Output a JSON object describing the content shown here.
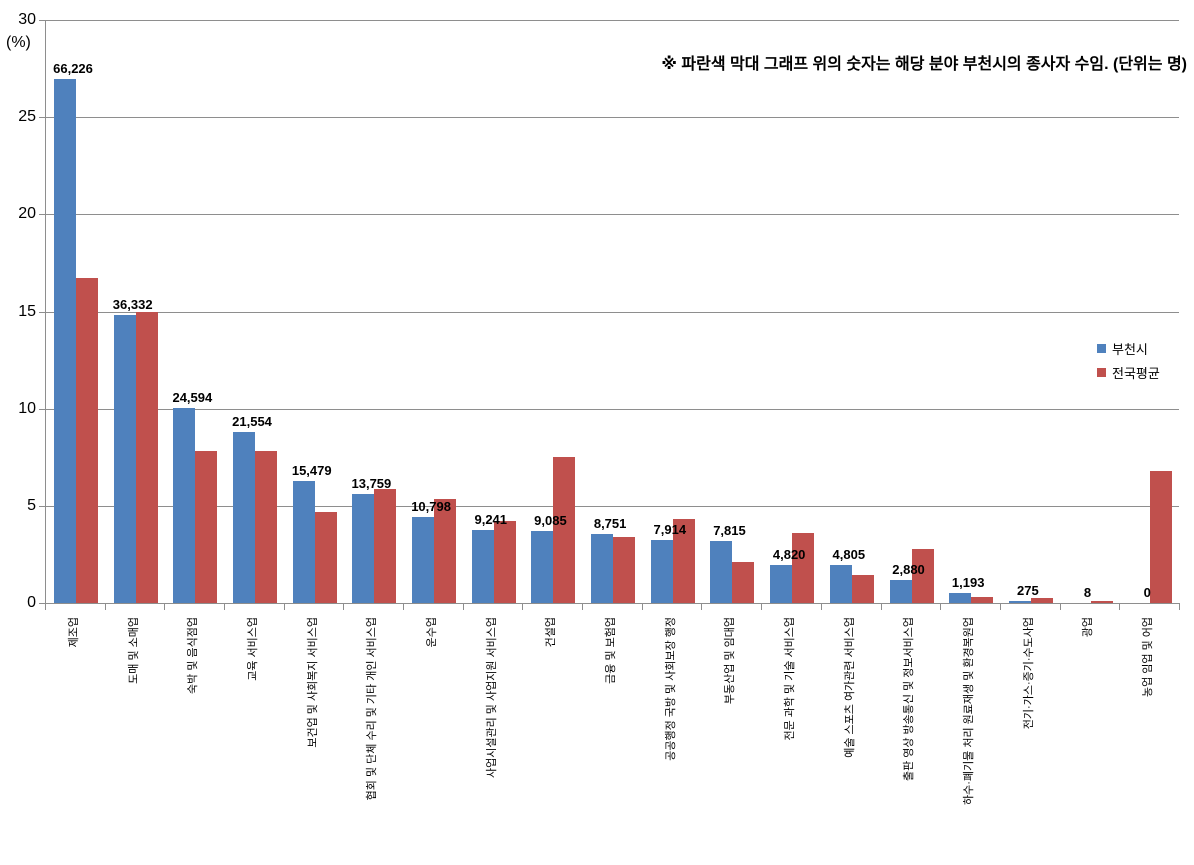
{
  "chart_data": {
    "type": "bar",
    "title": "",
    "note": "※ 파란색 막대 그래프 위의 숫자는 해당 분야 부천시의 종사자 수임. (단위는 명)",
    "ylabel": "(%)",
    "ylim": [
      0,
      30
    ],
    "yticks": [
      0,
      5,
      10,
      15,
      20,
      25,
      30
    ],
    "grid": true,
    "legend_position": "middle-right",
    "categories": [
      "제조업",
      "도매 및 소매업",
      "숙박 및 음식점업",
      "교육 서비스업",
      "보건업 및 사회복지 서비스업",
      "협회 및 단체 수리 및 기타 개인 서비스업",
      "운수업",
      "사업시설관리 및 사업지원 서비스업",
      "건설업",
      "금융 및 보험업",
      "공공행정 국방 및 사회보장 행정",
      "부동산업 및 임대업",
      "전문 과학 및 기술 서비스업",
      "예술 스포츠 여가관련 서비스업",
      "출판 영상 방송통신 및 정보서비스업",
      "하수·폐기물 처리 원료재생 및 환경복원업",
      "전기·가스·증기·수도사업",
      "광업",
      "농업 임업 및 어업"
    ],
    "series": [
      {
        "name": "부천시",
        "color": "#4F81BD",
        "values": [
          26.97,
          14.8,
          10.02,
          8.78,
          6.3,
          5.6,
          4.4,
          3.76,
          3.7,
          3.56,
          3.22,
          3.18,
          1.96,
          1.96,
          1.17,
          0.49,
          0.11,
          0.003,
          0
        ],
        "bar_labels": [
          "66,226",
          "36,332",
          "24,594",
          "21,554",
          "15,479",
          "13,759",
          "10,798",
          "9,241",
          "9,085",
          "8,751",
          "7,914",
          "7,815",
          "4,820",
          "4,805",
          "2,880",
          "1,193",
          "275",
          "8",
          "0"
        ]
      },
      {
        "name": "전국평균",
        "color": "#C0504D",
        "values": [
          16.7,
          15.0,
          7.8,
          7.8,
          4.7,
          5.85,
          5.35,
          4.2,
          7.5,
          3.4,
          4.3,
          2.1,
          3.6,
          1.45,
          2.8,
          0.3,
          0.25,
          0.1,
          6.8
        ]
      }
    ]
  },
  "colors": {
    "background": "#FFFFFF",
    "gridline": "#8E8E8E",
    "axis": "#8E8E8E",
    "text": "#000000"
  }
}
